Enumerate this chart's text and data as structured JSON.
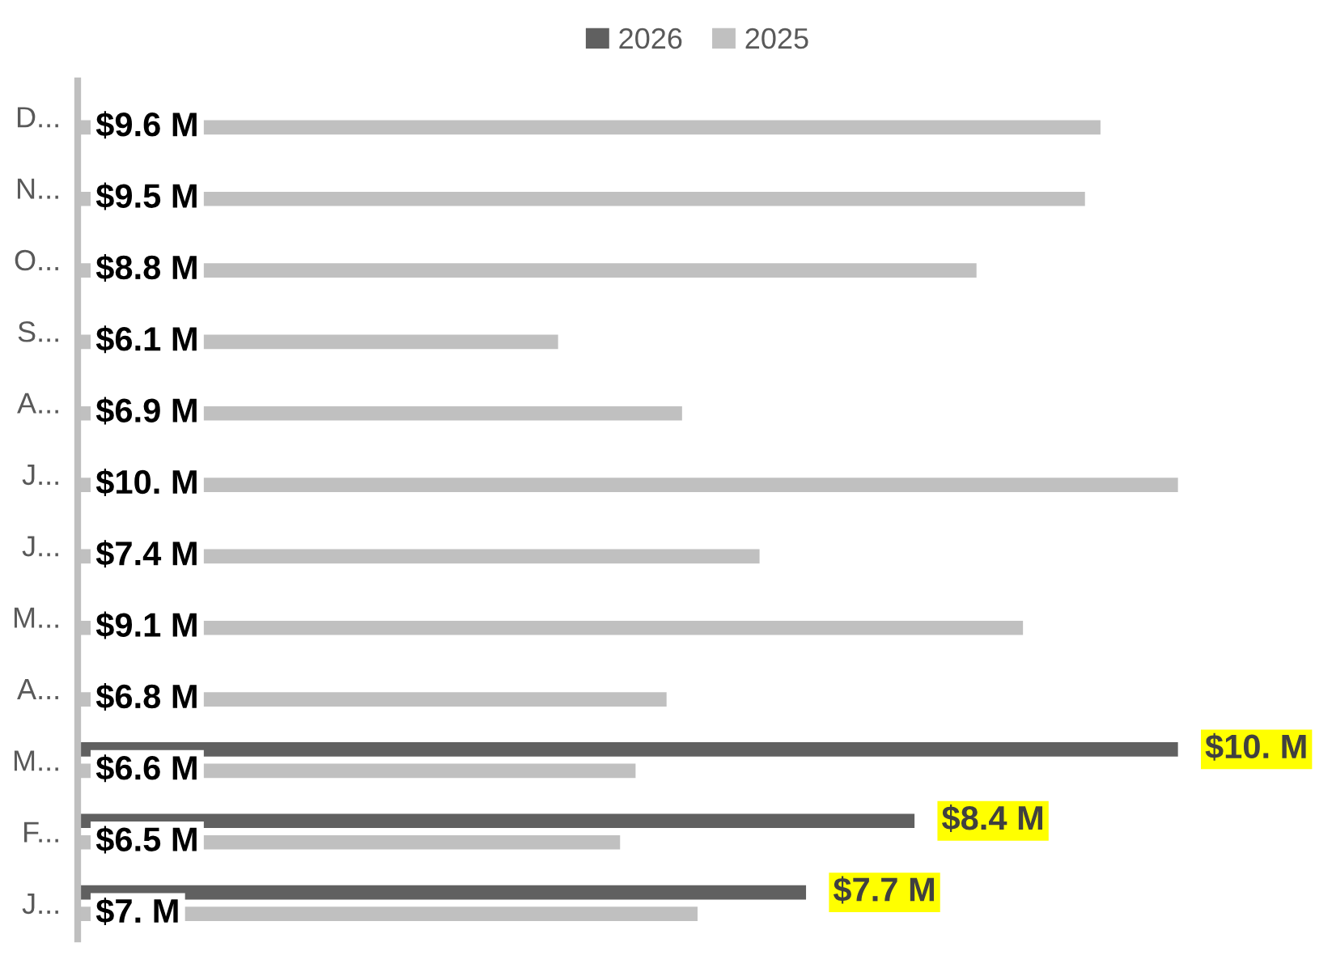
{
  "chart_data": {
    "type": "bar",
    "orientation": "horizontal",
    "categories": [
      "D...",
      "N...",
      "O...",
      "S...",
      "A...",
      "J...",
      "J...",
      "M...",
      "A...",
      "M...",
      "F...",
      "J..."
    ],
    "series": [
      {
        "name": "2026",
        "color": "#606060",
        "values": [
          null,
          null,
          null,
          null,
          null,
          null,
          null,
          null,
          null,
          10.1,
          8.4,
          7.7
        ],
        "value_labels": [
          null,
          null,
          null,
          null,
          null,
          null,
          null,
          null,
          null,
          "$10. M",
          "$8.4 M",
          "$7.7 M"
        ]
      },
      {
        "name": "2025",
        "color": "#c0c0c0",
        "values": [
          9.6,
          9.5,
          8.8,
          6.1,
          6.9,
          10.1,
          7.4,
          9.1,
          6.8,
          6.6,
          6.5,
          7.0
        ],
        "value_labels": [
          "$9.6 M",
          "$9.5 M",
          "$8.8 M",
          "$6.1 M",
          "$6.9 M",
          "$10. M",
          "$7.4 M",
          "$9.1 M",
          "$6.8 M",
          "$6.6 M",
          "$6.5 M",
          "$7. M"
        ]
      }
    ],
    "xlim": [
      3,
      11
    ],
    "tick_labels": "y",
    "legend": "top",
    "grid": false
  }
}
